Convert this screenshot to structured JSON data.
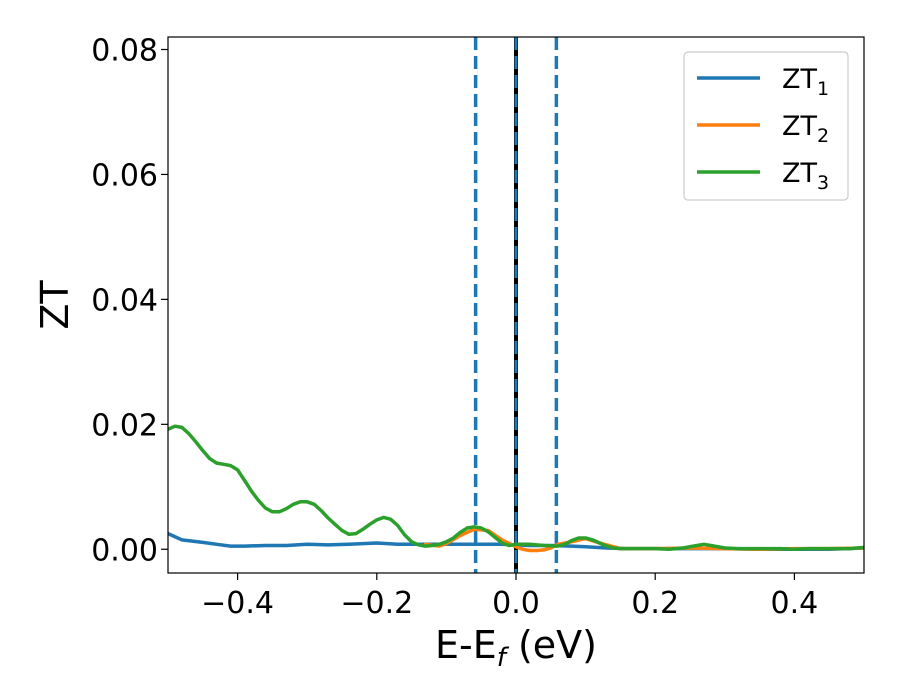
{
  "chart_data": {
    "type": "line",
    "xlabel": "E-E",
    "xlabel_sub": "f",
    "xlabel_suffix": " (eV)",
    "ylabel": "ZT",
    "xlim": [
      -0.5,
      0.5
    ],
    "ylim": [
      -0.0038,
      0.082
    ],
    "xticks": [
      -0.4,
      -0.2,
      0.0,
      0.2,
      0.4
    ],
    "xtick_labels": [
      "−0.4",
      "−0.2",
      "0.0",
      "0.2",
      "0.4"
    ],
    "yticks": [
      0.0,
      0.02,
      0.04,
      0.06,
      0.08
    ],
    "ytick_labels": [
      "0.00",
      "0.02",
      "0.04",
      "0.06",
      "0.08"
    ],
    "grid": false,
    "legend_position": "top-right",
    "series": [
      {
        "name": "ZT",
        "name_sub": "1",
        "color": "#1f77b4",
        "x": [
          -0.5,
          -0.48,
          -0.45,
          -0.43,
          -0.41,
          -0.39,
          -0.36,
          -0.33,
          -0.3,
          -0.27,
          -0.24,
          -0.2,
          -0.17,
          -0.14,
          -0.11,
          -0.08,
          -0.05,
          -0.02,
          0.0,
          0.02,
          0.05,
          0.08,
          0.1,
          0.13,
          0.16,
          0.2,
          0.25,
          0.3,
          0.35,
          0.4,
          0.45,
          0.5
        ],
        "y": [
          0.0025,
          0.0015,
          0.0011,
          0.0008,
          0.0005,
          0.0005,
          0.0006,
          0.0006,
          0.0008,
          0.0007,
          0.0008,
          0.001,
          0.0008,
          0.0008,
          0.0008,
          0.0008,
          0.0008,
          0.0008,
          0.0007,
          0.0006,
          0.0006,
          0.0005,
          0.0004,
          0.0002,
          0.0001,
          0.0001,
          0.0001,
          0.0001,
          0.0,
          0.0,
          0.0,
          0.0002
        ]
      },
      {
        "name": "ZT",
        "name_sub": "2",
        "color": "#ff7f0e",
        "x": [
          -0.13,
          -0.11,
          -0.1,
          -0.08,
          -0.06,
          -0.04,
          -0.02,
          0.0,
          0.01,
          0.02,
          0.03,
          0.04,
          0.05,
          0.06,
          0.08,
          0.1,
          0.12,
          0.15,
          0.2,
          0.25,
          0.3,
          0.35,
          0.4,
          0.45,
          0.5
        ],
        "y": [
          0.0008,
          0.0005,
          0.0009,
          0.0022,
          0.0032,
          0.003,
          0.0015,
          0.0004,
          0.0,
          -0.0002,
          -0.0002,
          -0.0001,
          0.0002,
          0.0008,
          0.0012,
          0.0017,
          0.001,
          0.0001,
          0.0001,
          0.0002,
          0.0001,
          0.0,
          0.0001,
          0.0001,
          0.0002
        ]
      },
      {
        "name": "ZT",
        "name_sub": "3",
        "color": "#2ca02c",
        "x": [
          -0.5,
          -0.49,
          -0.48,
          -0.47,
          -0.46,
          -0.45,
          -0.44,
          -0.43,
          -0.42,
          -0.41,
          -0.4,
          -0.39,
          -0.38,
          -0.37,
          -0.36,
          -0.35,
          -0.34,
          -0.33,
          -0.32,
          -0.31,
          -0.3,
          -0.29,
          -0.28,
          -0.27,
          -0.26,
          -0.25,
          -0.24,
          -0.23,
          -0.22,
          -0.21,
          -0.2,
          -0.19,
          -0.18,
          -0.17,
          -0.16,
          -0.15,
          -0.14,
          -0.13,
          -0.12,
          -0.11,
          -0.1,
          -0.09,
          -0.08,
          -0.07,
          -0.06,
          -0.05,
          -0.04,
          -0.03,
          -0.02,
          -0.01,
          0.0,
          0.02,
          0.04,
          0.06,
          0.07,
          0.08,
          0.09,
          0.1,
          0.11,
          0.12,
          0.13,
          0.14,
          0.15,
          0.16,
          0.18,
          0.2,
          0.22,
          0.24,
          0.26,
          0.27,
          0.28,
          0.3,
          0.32,
          0.35,
          0.38,
          0.4,
          0.42,
          0.45,
          0.48,
          0.5
        ],
        "y": [
          0.0192,
          0.0197,
          0.0195,
          0.0185,
          0.0172,
          0.0158,
          0.0145,
          0.0138,
          0.0136,
          0.0134,
          0.0127,
          0.011,
          0.0093,
          0.0078,
          0.0066,
          0.006,
          0.006,
          0.0065,
          0.0072,
          0.0076,
          0.0076,
          0.0072,
          0.0062,
          0.005,
          0.004,
          0.003,
          0.0024,
          0.0025,
          0.0032,
          0.004,
          0.0047,
          0.0051,
          0.0048,
          0.0038,
          0.0023,
          0.0012,
          0.0007,
          0.0005,
          0.0006,
          0.0008,
          0.0012,
          0.0018,
          0.0027,
          0.0034,
          0.0036,
          0.0034,
          0.0028,
          0.0019,
          0.001,
          0.0006,
          0.0008,
          0.0008,
          0.0006,
          0.0005,
          0.0008,
          0.0014,
          0.0018,
          0.0018,
          0.0015,
          0.001,
          0.0005,
          0.0002,
          0.0001,
          0.0001,
          0.0001,
          0.0001,
          0.0,
          0.0002,
          0.0006,
          0.0008,
          0.0006,
          0.0002,
          0.0001,
          0.0001,
          0.0001,
          0.0,
          0.0001,
          0.0001,
          0.0001,
          0.0003
        ]
      }
    ],
    "vlines": [
      {
        "x": -0.058,
        "color": "#1f77b4",
        "style": "dashed"
      },
      {
        "x": 0.058,
        "color": "#1f77b4",
        "style": "dashed"
      },
      {
        "x": 0.0,
        "color": "#000000",
        "style": "solid-with-blue-dashes"
      }
    ]
  }
}
